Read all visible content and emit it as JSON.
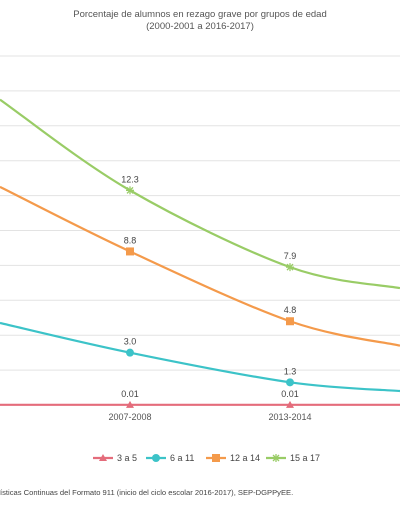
{
  "chart_data": {
    "type": "line",
    "title": "Porcentaje de alumnos en rezago grave por grupos de edad",
    "subtitle": "(2000-2001 a 2016-2017)",
    "categories": [
      "",
      "2007-2008",
      "2013-2014",
      ""
    ],
    "ylim": [
      0,
      20
    ],
    "grid": true,
    "legend_position": "bottom",
    "series": [
      {
        "name": "3 a 5",
        "color": "#e46c7b",
        "marker": "triangle",
        "values": [
          0.01,
          0.01,
          0.01,
          0.01
        ],
        "labels": [
          "",
          "0.01",
          "0.01",
          ""
        ]
      },
      {
        "name": "6 a 11",
        "color": "#3cc3c8",
        "marker": "circle",
        "values": [
          4.7,
          3.0,
          1.3,
          0.8
        ],
        "labels": [
          "",
          "3.0",
          "1.3",
          ""
        ]
      },
      {
        "name": "12 a 14",
        "color": "#f49a4b",
        "marker": "square",
        "values": [
          12.5,
          8.8,
          4.8,
          3.4
        ],
        "labels": [
          "",
          "8.8",
          "4.8",
          ""
        ]
      },
      {
        "name": "15 a 17",
        "color": "#99cc66",
        "marker": "star",
        "values": [
          17.5,
          12.3,
          7.9,
          6.7
        ],
        "labels": [
          "",
          "12.3",
          "7.9",
          ""
        ]
      }
    ],
    "source": "ísticas Continuas del Formato 911  (inicio del ciclo escolar 2016-2017),  SEP-DGPPyEE."
  }
}
